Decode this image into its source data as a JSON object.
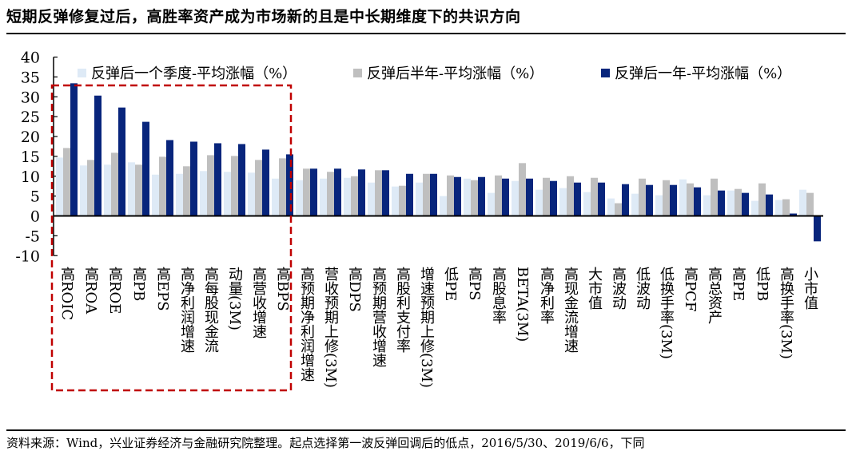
{
  "title": "短期反弹修复过后，高胜率资产成为市场新的且是中长期维度下的共识方向",
  "source": "资料来源：Wind，兴业证券经济与金融研究院整理。起点选择第一波反弹回调后的低点，2016/5/30、2019/6/6，下同",
  "chart_data": {
    "type": "bar",
    "title": "",
    "xlabel": "",
    "ylabel": "",
    "ylim": [
      -10,
      40
    ],
    "yticks": [
      -10,
      -5,
      0,
      5,
      10,
      15,
      20,
      25,
      30,
      35,
      40
    ],
    "grid": false,
    "legend_placement": "top",
    "highlight_box": "dashed red box around first 10 categories",
    "highlight_color": "#C00000",
    "categories": [
      "高ROIC",
      "高ROA",
      "高ROE",
      "高PB",
      "高EPS",
      "高净利润增速",
      "高每股现金流",
      "动量(3M)",
      "高营收增速",
      "高BPS",
      "高预期净利润增速",
      "营收预期上修(3M)",
      "高DPS",
      "高预期营收增速",
      "高股利支付率",
      "增速预期上修(3M)",
      "低PE",
      "高PS",
      "高股息率",
      "BETA(3M)",
      "高净利率",
      "高现金流增速",
      "大市值",
      "高波动",
      "低波动",
      "低换手率(3M)",
      "高PCF",
      "高总资产",
      "高PE",
      "低PB",
      "高换手率(3M)",
      "小市值"
    ],
    "series": [
      {
        "name": "反弹后一个季度-平均涨幅（%）",
        "color": "#DEEAF6",
        "values": [
          14.7,
          12.7,
          12.9,
          13.5,
          10.4,
          10.6,
          11.3,
          11.1,
          10.9,
          9.4,
          9.0,
          9.4,
          9.6,
          8.4,
          7.4,
          8.4,
          5.0,
          9.4,
          5.8,
          8.8,
          6.6,
          7.0,
          6.0,
          4.4,
          5.6,
          5.2,
          9.2,
          5.2,
          6.4,
          3.8,
          4.0,
          6.6
        ]
      },
      {
        "name": "反弹后半年-平均涨幅（%）",
        "color": "#BFBFBF",
        "values": [
          17.1,
          14.1,
          15.9,
          12.9,
          14.9,
          12.5,
          15.3,
          15.1,
          14.1,
          14.5,
          11.9,
          11.1,
          10.0,
          11.5,
          7.6,
          10.6,
          10.2,
          9.0,
          10.2,
          13.3,
          9.6,
          10.0,
          9.6,
          3.2,
          9.4,
          9.0,
          8.2,
          9.4,
          6.8,
          8.2,
          4.2,
          5.8
        ]
      },
      {
        "name": "反弹后一年-平均涨幅（%）",
        "color": "#08257C",
        "values": [
          33.4,
          30.3,
          27.3,
          23.7,
          19.1,
          18.7,
          18.3,
          18.1,
          16.7,
          15.5,
          11.9,
          11.9,
          11.7,
          11.5,
          10.6,
          10.6,
          9.8,
          9.8,
          9.4,
          9.4,
          8.8,
          8.4,
          8.4,
          8.0,
          7.8,
          7.8,
          7.2,
          6.4,
          5.8,
          5.4,
          0.6,
          -6.4
        ]
      }
    ]
  }
}
